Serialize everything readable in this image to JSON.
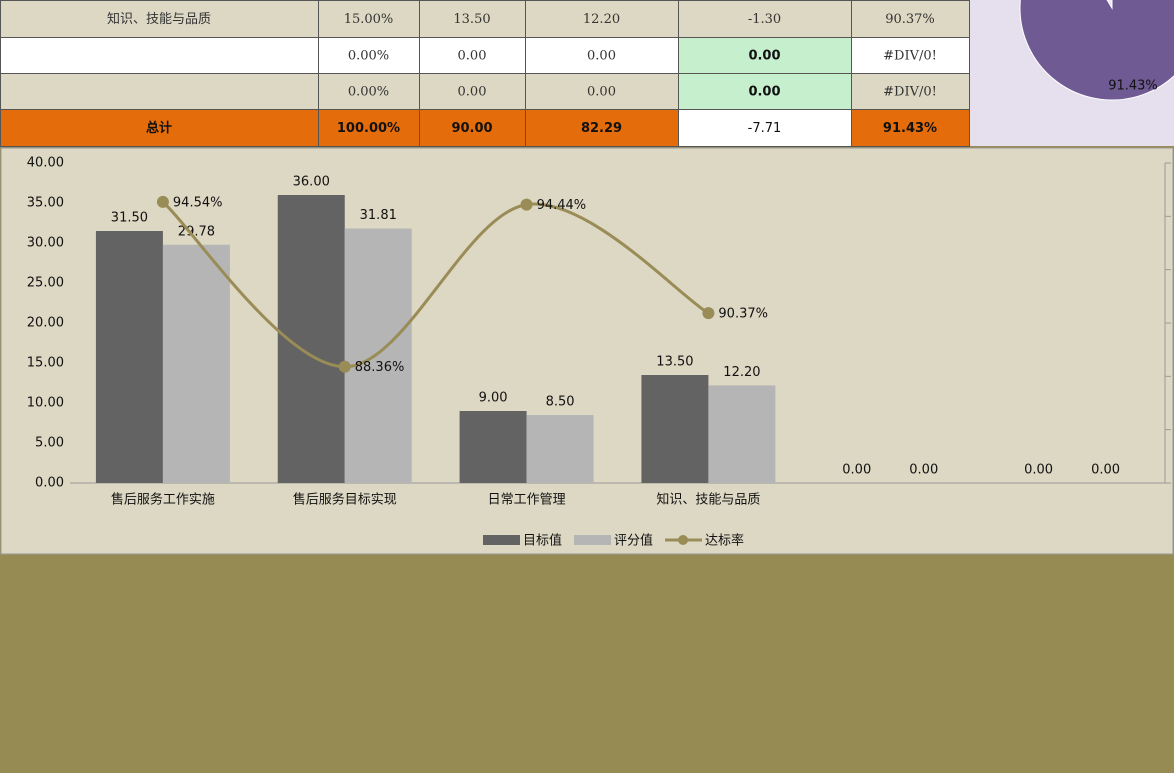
{
  "table": {
    "rows": [
      [
        "知识、技能与品质",
        "15.00%",
        "13.50",
        "12.20",
        "-1.30",
        "90.37%"
      ],
      [
        null,
        "0.00%",
        "0.00",
        "0.00",
        "0.00",
        "#DIV/0!"
      ],
      [
        null,
        "0.00%",
        "0.00",
        "0.00",
        "0.00",
        "#DIV/0!"
      ],
      [
        "总计",
        "100.00%",
        "90.00",
        "82.29",
        "-7.71",
        "91.43%"
      ]
    ]
  },
  "chart_data": [
    {
      "type": "combo",
      "categories": [
        "售后服务工作实施",
        "售后服务目标实现",
        "日常工作管理",
        "知识、技能与品质",
        null,
        null
      ],
      "series": [
        {
          "name": "目标值",
          "color": "#636363",
          "type": "bar",
          "values": [
            31.5,
            36,
            9,
            13.5,
            0,
            0
          ],
          "value_labels": [
            "31.50",
            "36.00",
            "9.00",
            "13.50",
            "0.00",
            "0.00"
          ]
        },
        {
          "name": "评分值",
          "color": "#b5b5b5",
          "type": "bar",
          "values": [
            29.78,
            31.81,
            8.5,
            12.2,
            0,
            0
          ],
          "value_labels": [
            "29.78",
            "31.81",
            "8.50",
            "12.20",
            "0.00",
            "0.00"
          ]
        },
        {
          "name": "达标率",
          "color": "#9a8c57",
          "type": "line",
          "axis": "y2",
          "values": [
            94.54,
            88.36,
            94.44,
            90.37,
            null,
            null
          ],
          "value_labels": [
            "94.54%",
            "88.36%",
            "94.44%",
            "90.37%",
            null,
            null
          ]
        }
      ],
      "ylim": [
        0,
        40
      ],
      "yticks": [
        {
          "value": 0,
          "label": "0.00"
        },
        {
          "value": 5,
          "label": "5.00"
        },
        {
          "value": 10,
          "label": "10.00"
        },
        {
          "value": 15,
          "label": "15.00"
        },
        {
          "value": 20,
          "label": "20.00"
        },
        {
          "value": 25,
          "label": "25.00"
        },
        {
          "value": 30,
          "label": "30.00"
        },
        {
          "value": 35,
          "label": "35.00"
        },
        {
          "value": 40,
          "label": "40.00"
        }
      ],
      "y2lim": [
        84,
        96
      ],
      "y2ticks": [
        84,
        86,
        88,
        90,
        92,
        94,
        96
      ],
      "legend": "bottom"
    },
    {
      "type": "pie",
      "values": [
        91.43,
        8.57
      ],
      "value_labels": [
        "91.43%",
        null
      ],
      "colors": [
        "#6f5a93",
        "#ece8f2"
      ]
    }
  ]
}
